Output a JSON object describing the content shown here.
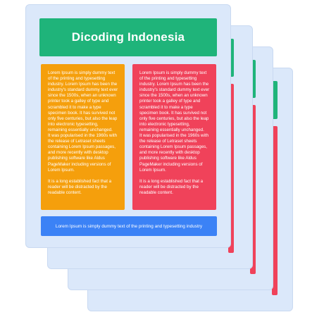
{
  "document": {
    "title": "Dicoding Indonesia",
    "column_left": {
      "paragraph_1": "Lorem Ipsum is simply dummy text of the printing and typesetting industry. Lorem Ipsum has been the industry's standard dummy text ever since the 1500s, when an unknown printer took a galley of type and scrambled it to make a type specimen book. It has survived not only five centuries, but also the leap into electronic typesetting, remaining essentially unchanged.",
      "paragraph_2": "It was popularised in the 1960s with the release of Letraset sheets containing Lorem Ipsum passages, and more recently with desktop publishing software like Aldus PageMaker including versions of Lorem Ipsum.",
      "paragraph_3": "It is a long established fact that a reader will be distracted by the readable content."
    },
    "column_right": {
      "paragraph_1": "Lorem Ipsum is simply dummy text of the printing and typesetting industry. Lorem Ipsum has been the industry's standard dummy text ever since the 1500s, when an unknown printer took a galley of type and scrambled it to make a type specimen book. It has survived not only five centuries, but also the leap into electronic typesetting, remaining essentially unchanged.",
      "paragraph_2": "It was popularised in the 1960s with the release of Letraset sheets containing Lorem Ipsum passages, and more recently with desktop publishing software like Aldus PageMaker including versions of Lorem Ipsum.",
      "paragraph_3": "It is a long established fact that a reader will be distracted by the readable content."
    },
    "footer_text": "Lorem Ipsum is simply dummy text of the printing and typesetting industry"
  },
  "colors": {
    "page_background": "#dbe8fa",
    "header": "#1fb47a",
    "column_left": "#f59f0c",
    "column_right": "#f0425a",
    "footer": "#3b82f6"
  }
}
